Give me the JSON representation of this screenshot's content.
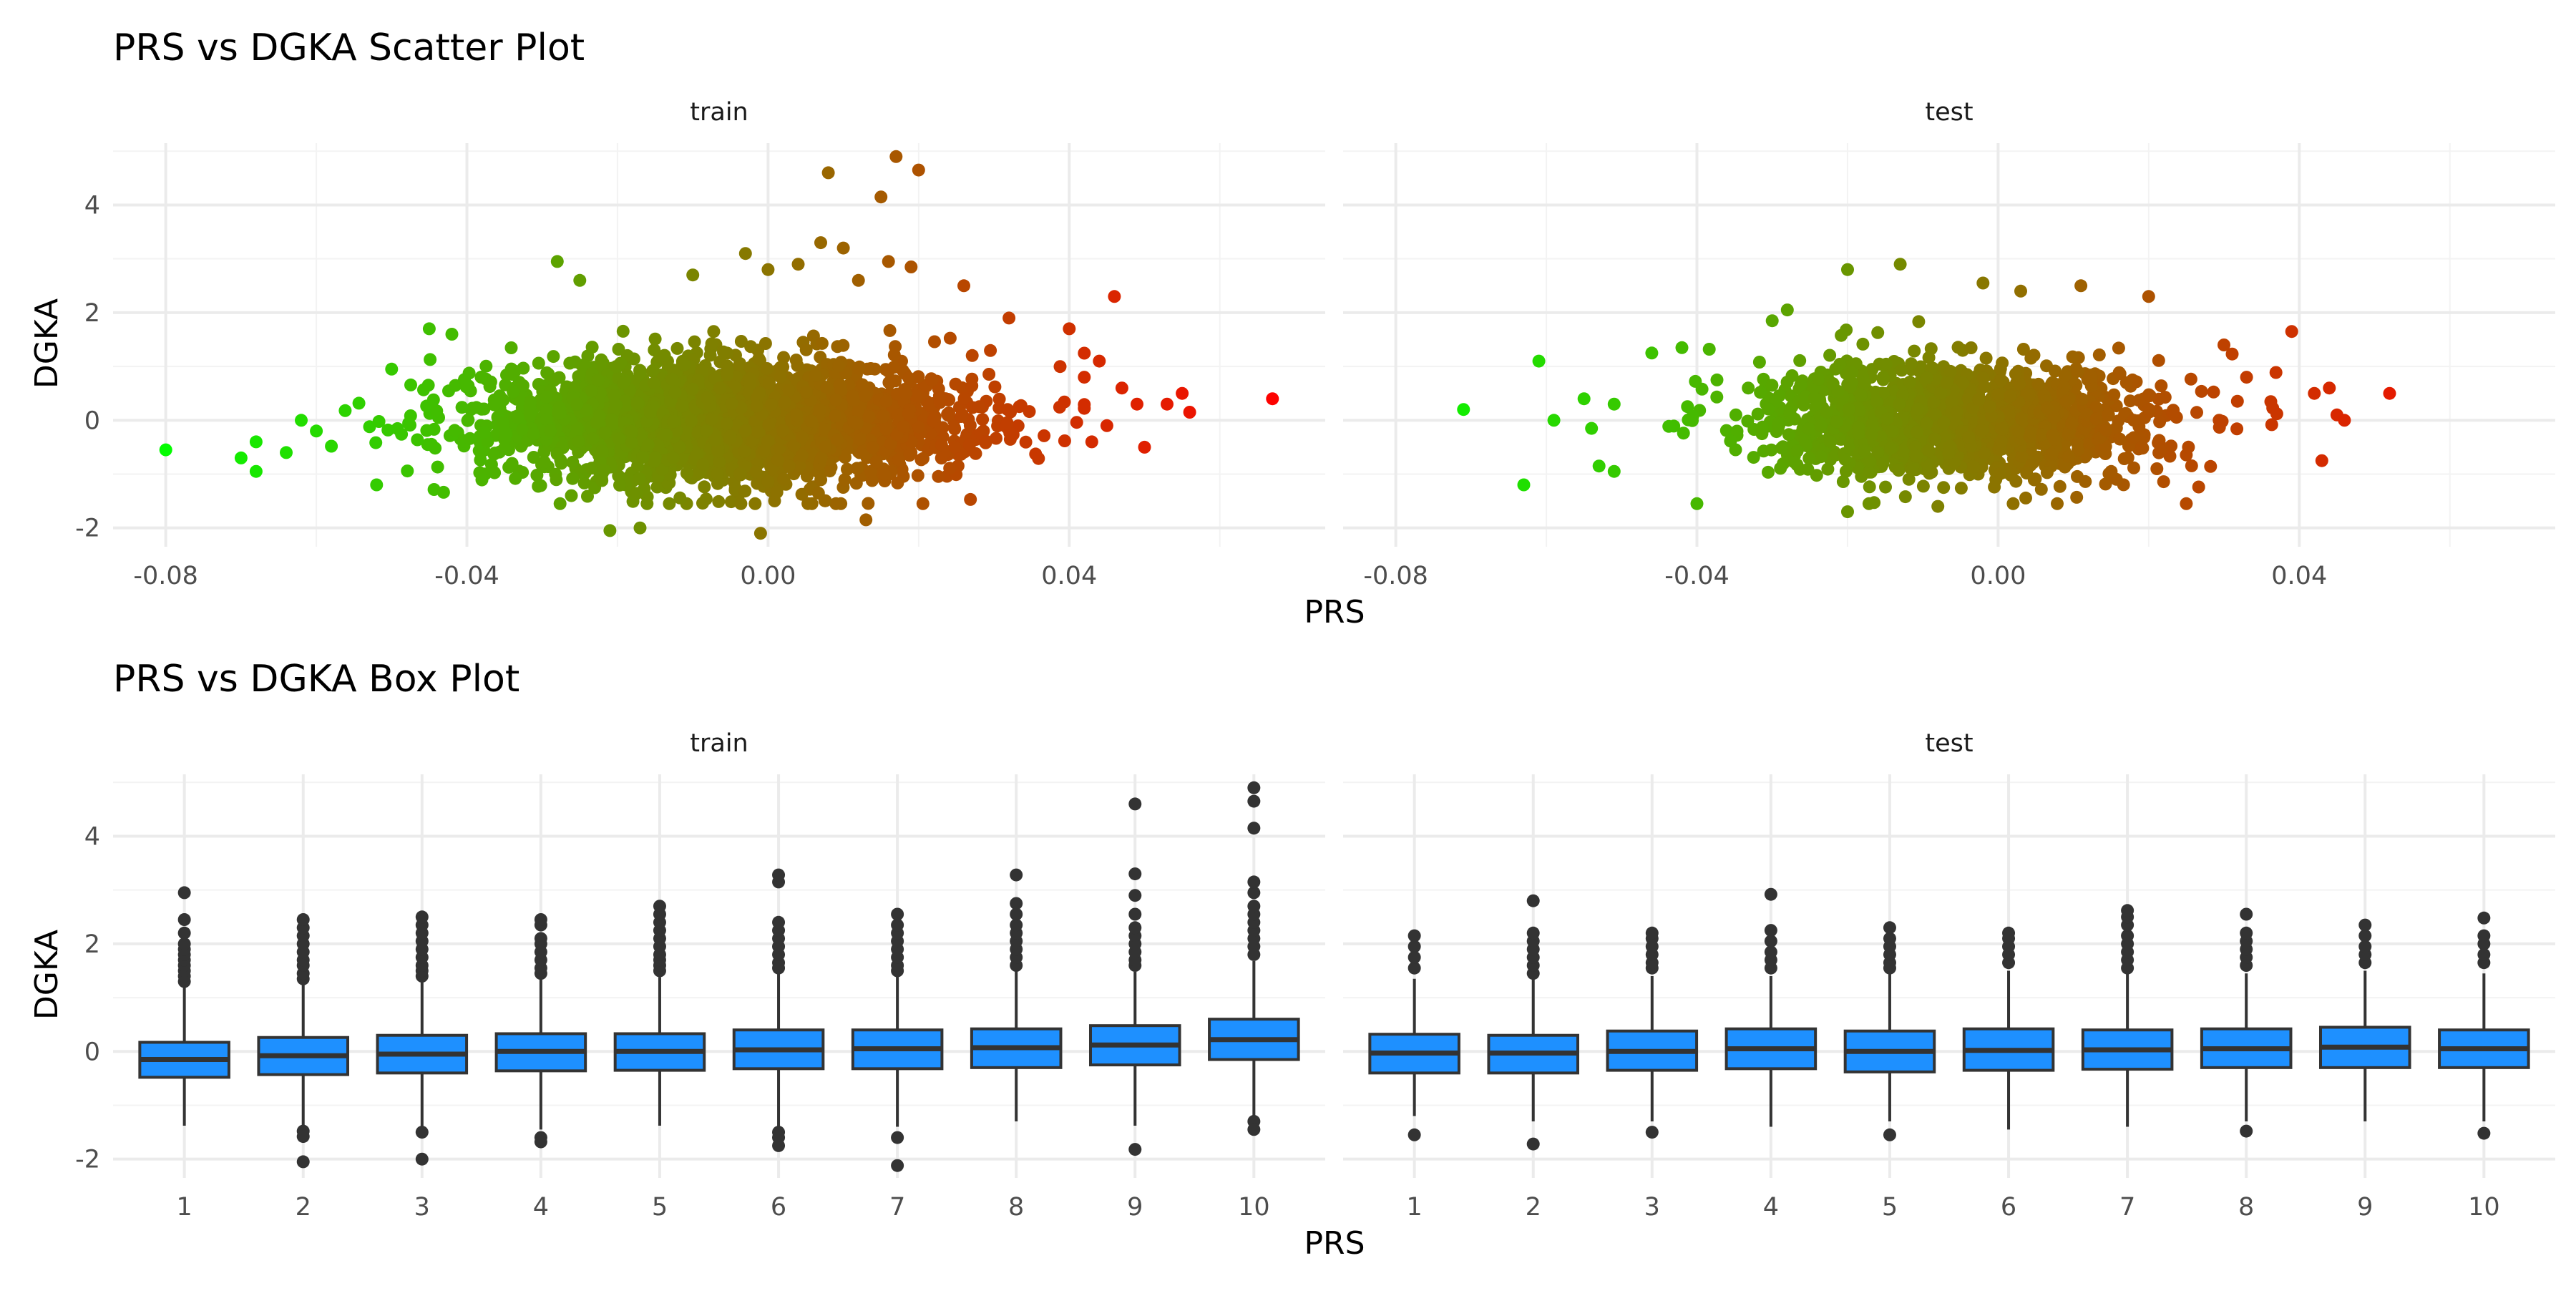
{
  "chart_data": [
    {
      "type": "scatter",
      "title": "PRS vs DGKA Scatter Plot",
      "xlabel": "PRS",
      "ylabel": "DGKA",
      "xlim": [
        -0.087,
        0.074
      ],
      "ylim": [
        -2.35,
        5.15
      ],
      "x_ticks": [
        "-0.08",
        "-0.04",
        "0.00",
        "0.04"
      ],
      "x_tick_values": [
        -0.08,
        -0.04,
        0.0,
        0.04
      ],
      "y_ticks": [
        "-2",
        "0",
        "2",
        "4"
      ],
      "y_tick_values": [
        -2,
        0,
        2,
        4
      ],
      "grid": true,
      "legend": "none",
      "color_scale": {
        "low": "#00ff00",
        "high": "#ff0000",
        "by": "x"
      },
      "panels": [
        {
          "name": "train",
          "cloud": {
            "center_x": -0.005,
            "sd_x": 0.016,
            "sd_y": 0.55,
            "n": 2600
          },
          "points": [
            {
              "x": -0.08,
              "y": -0.55
            },
            {
              "x": -0.07,
              "y": -0.7
            },
            {
              "x": -0.068,
              "y": -0.95
            },
            {
              "x": -0.068,
              "y": -0.4
            },
            {
              "x": -0.062,
              "y": 0.0
            },
            {
              "x": -0.06,
              "y": -0.2
            },
            {
              "x": -0.064,
              "y": -0.6
            },
            {
              "x": -0.05,
              "y": 0.95
            },
            {
              "x": -0.045,
              "y": 1.7
            },
            {
              "x": -0.042,
              "y": 1.6
            },
            {
              "x": -0.052,
              "y": -1.2
            },
            {
              "x": -0.028,
              "y": 2.95
            },
            {
              "x": -0.025,
              "y": 2.6
            },
            {
              "x": -0.021,
              "y": -2.05
            },
            {
              "x": -0.017,
              "y": -2.0
            },
            {
              "x": -0.01,
              "y": 2.7
            },
            {
              "x": -0.003,
              "y": 3.1
            },
            {
              "x": 0.0,
              "y": 2.8
            },
            {
              "x": 0.004,
              "y": 2.9
            },
            {
              "x": 0.007,
              "y": 3.3
            },
            {
              "x": 0.01,
              "y": 3.2
            },
            {
              "x": 0.008,
              "y": 4.6
            },
            {
              "x": 0.015,
              "y": 4.15
            },
            {
              "x": 0.017,
              "y": 4.9
            },
            {
              "x": 0.02,
              "y": 4.65
            },
            {
              "x": 0.012,
              "y": 2.6
            },
            {
              "x": 0.016,
              "y": 2.95
            },
            {
              "x": 0.019,
              "y": 2.85
            },
            {
              "x": -0.001,
              "y": -2.1
            },
            {
              "x": 0.013,
              "y": -1.85
            },
            {
              "x": 0.026,
              "y": 2.5
            },
            {
              "x": 0.032,
              "y": 1.9
            },
            {
              "x": 0.04,
              "y": 1.7
            },
            {
              "x": 0.046,
              "y": 2.3
            },
            {
              "x": 0.044,
              "y": 1.1
            },
            {
              "x": 0.042,
              "y": 0.8
            },
            {
              "x": 0.047,
              "y": 0.6
            },
            {
              "x": 0.049,
              "y": 0.3
            },
            {
              "x": 0.05,
              "y": -0.5
            },
            {
              "x": 0.053,
              "y": 0.3
            },
            {
              "x": 0.055,
              "y": 0.5
            },
            {
              "x": 0.056,
              "y": 0.15
            },
            {
              "x": 0.045,
              "y": -0.1
            },
            {
              "x": 0.043,
              "y": -0.4
            },
            {
              "x": 0.067,
              "y": 0.4
            }
          ]
        },
        {
          "name": "test",
          "cloud": {
            "center_x": -0.005,
            "sd_x": 0.013,
            "sd_y": 0.5,
            "n": 1700
          },
          "points": [
            {
              "x": -0.071,
              "y": 0.2
            },
            {
              "x": -0.063,
              "y": -1.2
            },
            {
              "x": -0.061,
              "y": 1.1
            },
            {
              "x": -0.059,
              "y": 0.0
            },
            {
              "x": -0.055,
              "y": 0.4
            },
            {
              "x": -0.054,
              "y": -0.15
            },
            {
              "x": -0.051,
              "y": 0.3
            },
            {
              "x": -0.053,
              "y": -0.85
            },
            {
              "x": -0.051,
              "y": -0.95
            },
            {
              "x": -0.046,
              "y": 1.25
            },
            {
              "x": -0.042,
              "y": 1.35
            },
            {
              "x": -0.04,
              "y": -1.55
            },
            {
              "x": -0.03,
              "y": 1.85
            },
            {
              "x": -0.028,
              "y": 2.05
            },
            {
              "x": -0.02,
              "y": 2.8
            },
            {
              "x": -0.013,
              "y": 2.9
            },
            {
              "x": -0.002,
              "y": 2.55
            },
            {
              "x": 0.003,
              "y": 2.4
            },
            {
              "x": 0.011,
              "y": 2.5
            },
            {
              "x": -0.02,
              "y": -1.7
            },
            {
              "x": -0.008,
              "y": -1.6
            },
            {
              "x": 0.002,
              "y": -1.55
            },
            {
              "x": 0.02,
              "y": 2.3
            },
            {
              "x": 0.03,
              "y": 1.4
            },
            {
              "x": 0.039,
              "y": 1.65
            },
            {
              "x": 0.042,
              "y": 0.5
            },
            {
              "x": 0.043,
              "y": -0.75
            },
            {
              "x": 0.044,
              "y": 0.6
            },
            {
              "x": 0.045,
              "y": 0.1
            },
            {
              "x": 0.046,
              "y": 0.0
            },
            {
              "x": 0.052,
              "y": 0.5
            },
            {
              "x": 0.025,
              "y": -1.55
            },
            {
              "x": 0.033,
              "y": 0.8
            }
          ]
        }
      ]
    },
    {
      "type": "box",
      "title": "PRS vs DGKA Box Plot",
      "xlabel": "PRS",
      "ylabel": "DGKA",
      "categories": [
        "1",
        "2",
        "3",
        "4",
        "5",
        "6",
        "7",
        "8",
        "9",
        "10"
      ],
      "ylim": [
        -2.35,
        5.15
      ],
      "y_ticks": [
        "-2",
        "0",
        "2",
        "4"
      ],
      "y_tick_values": [
        -2,
        0,
        2,
        4
      ],
      "grid": true,
      "legend": "none",
      "box_color": "#1e90ff",
      "panels": [
        {
          "name": "train",
          "boxes": [
            {
              "q1": -0.48,
              "median": -0.15,
              "q3": 0.17,
              "lo": -1.38,
              "hi": 1.2,
              "outliers": [
                1.3,
                1.4,
                1.5,
                1.6,
                1.7,
                1.8,
                1.9,
                2.0,
                2.2,
                2.45,
                2.95
              ]
            },
            {
              "q1": -0.43,
              "median": -0.08,
              "q3": 0.26,
              "lo": -1.4,
              "hi": 1.25,
              "outliers": [
                1.35,
                1.45,
                1.6,
                1.7,
                1.85,
                2.0,
                2.15,
                2.3,
                2.45,
                -1.48,
                -1.58,
                -2.05
              ]
            },
            {
              "q1": -0.4,
              "median": -0.05,
              "q3": 0.3,
              "lo": -1.4,
              "hi": 1.3,
              "outliers": [
                1.4,
                1.5,
                1.6,
                1.75,
                1.9,
                2.05,
                2.2,
                2.35,
                2.5,
                -1.5,
                -2.0
              ]
            },
            {
              "q1": -0.36,
              "median": 0.0,
              "q3": 0.33,
              "lo": -1.45,
              "hi": 1.35,
              "outliers": [
                1.45,
                1.55,
                1.7,
                1.85,
                2.0,
                2.1,
                2.35,
                2.45,
                -1.6,
                -1.68
              ]
            },
            {
              "q1": -0.35,
              "median": 0.0,
              "q3": 0.33,
              "lo": -1.38,
              "hi": 1.38,
              "outliers": [
                1.5,
                1.6,
                1.7,
                1.8,
                1.95,
                2.1,
                2.25,
                2.4,
                2.55,
                2.7
              ]
            },
            {
              "q1": -0.32,
              "median": 0.03,
              "q3": 0.4,
              "lo": -1.42,
              "hi": 1.45,
              "outliers": [
                1.55,
                1.65,
                1.8,
                1.95,
                2.1,
                2.25,
                2.4,
                3.15,
                3.28,
                -1.5,
                -1.6,
                -1.75
              ]
            },
            {
              "q1": -0.32,
              "median": 0.05,
              "q3": 0.4,
              "lo": -1.4,
              "hi": 1.4,
              "outliers": [
                1.5,
                1.6,
                1.75,
                1.9,
                2.05,
                2.2,
                2.35,
                2.55,
                -1.6,
                -2.12
              ]
            },
            {
              "q1": -0.3,
              "median": 0.07,
              "q3": 0.42,
              "lo": -1.3,
              "hi": 1.5,
              "outliers": [
                1.6,
                1.75,
                1.9,
                2.05,
                2.2,
                2.35,
                2.55,
                2.75,
                3.28
              ]
            },
            {
              "q1": -0.25,
              "median": 0.12,
              "q3": 0.48,
              "lo": -1.38,
              "hi": 1.48,
              "outliers": [
                1.6,
                1.7,
                1.85,
                2.0,
                2.15,
                2.3,
                2.55,
                2.9,
                3.3,
                4.6,
                -1.82
              ]
            },
            {
              "q1": -0.15,
              "median": 0.22,
              "q3": 0.6,
              "lo": -1.25,
              "hi": 1.68,
              "outliers": [
                1.8,
                1.95,
                2.1,
                2.25,
                2.4,
                2.55,
                2.7,
                2.95,
                3.15,
                4.15,
                4.65,
                4.9,
                -1.3,
                -1.45
              ]
            }
          ]
        },
        {
          "name": "test",
          "boxes": [
            {
              "q1": -0.4,
              "median": -0.03,
              "q3": 0.32,
              "lo": -1.2,
              "hi": 1.35,
              "outliers": [
                1.55,
                1.75,
                1.95,
                2.15,
                -1.55
              ]
            },
            {
              "q1": -0.4,
              "median": -0.03,
              "q3": 0.3,
              "lo": -1.3,
              "hi": 1.35,
              "outliers": [
                1.45,
                1.6,
                1.75,
                1.9,
                2.05,
                2.2,
                2.8,
                -1.72
              ]
            },
            {
              "q1": -0.35,
              "median": 0.0,
              "q3": 0.38,
              "lo": -1.3,
              "hi": 1.4,
              "outliers": [
                1.55,
                1.65,
                1.8,
                1.95,
                2.1,
                2.2,
                -1.5
              ]
            },
            {
              "q1": -0.32,
              "median": 0.05,
              "q3": 0.42,
              "lo": -1.4,
              "hi": 1.4,
              "outliers": [
                1.55,
                1.7,
                1.85,
                2.05,
                2.25,
                2.92
              ]
            },
            {
              "q1": -0.38,
              "median": 0.0,
              "q3": 0.38,
              "lo": -1.3,
              "hi": 1.45,
              "outliers": [
                1.55,
                1.65,
                1.8,
                1.95,
                2.1,
                2.3,
                -1.55
              ]
            },
            {
              "q1": -0.35,
              "median": 0.02,
              "q3": 0.42,
              "lo": -1.45,
              "hi": 1.5,
              "outliers": [
                1.65,
                1.8,
                1.95,
                2.1,
                2.2
              ]
            },
            {
              "q1": -0.33,
              "median": 0.03,
              "q3": 0.4,
              "lo": -1.4,
              "hi": 1.45,
              "outliers": [
                1.55,
                1.7,
                1.85,
                2.0,
                2.15,
                2.35,
                2.5,
                2.62
              ]
            },
            {
              "q1": -0.3,
              "median": 0.05,
              "q3": 0.42,
              "lo": -1.3,
              "hi": 1.45,
              "outliers": [
                1.6,
                1.75,
                1.9,
                2.05,
                2.2,
                2.55,
                -1.48
              ]
            },
            {
              "q1": -0.3,
              "median": 0.08,
              "q3": 0.45,
              "lo": -1.3,
              "hi": 1.5,
              "outliers": [
                1.65,
                1.8,
                1.95,
                2.15,
                2.35
              ]
            },
            {
              "q1": -0.3,
              "median": 0.05,
              "q3": 0.4,
              "lo": -1.3,
              "hi": 1.45,
              "outliers": [
                1.65,
                1.8,
                2.0,
                2.15,
                2.48,
                -1.52
              ]
            }
          ]
        }
      ]
    }
  ]
}
